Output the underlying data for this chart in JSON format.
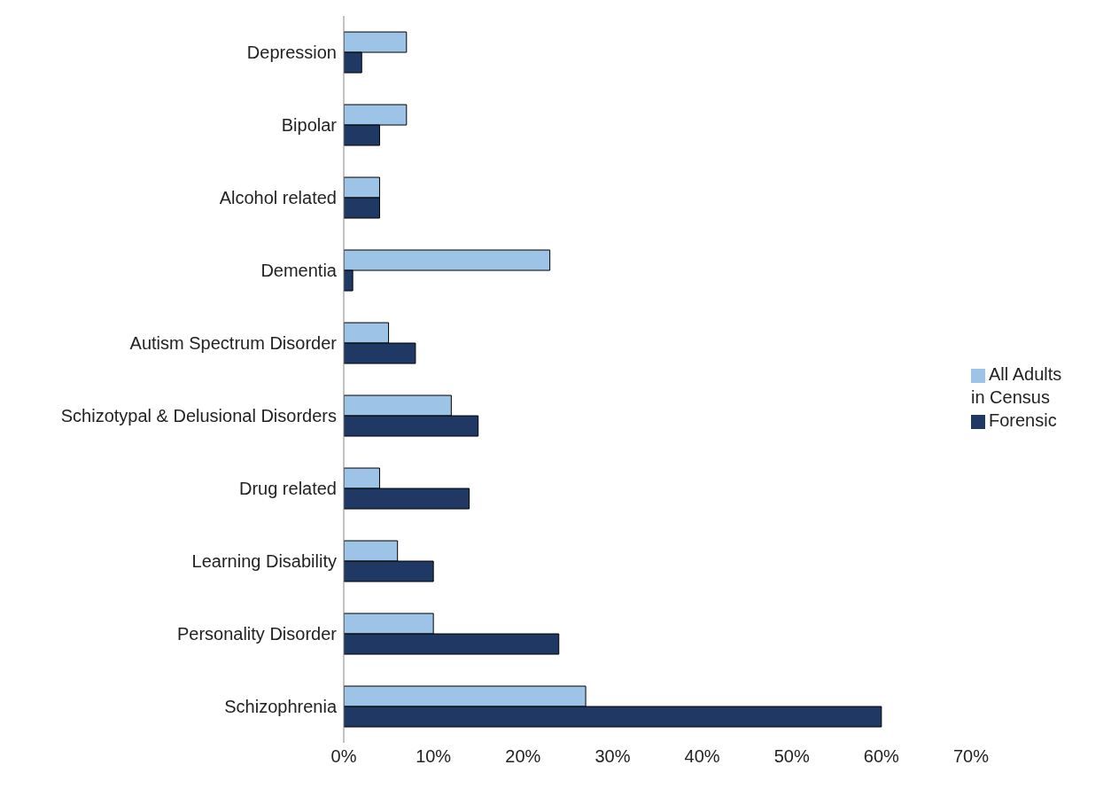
{
  "chart_data": {
    "type": "bar",
    "orientation": "horizontal",
    "categories": [
      "Depression",
      "Bipolar",
      "Alcohol related",
      "Dementia",
      "Autism Spectrum Disorder",
      "Schizotypal & Delusional Disorders",
      "Drug related",
      "Learning Disability",
      "Personality Disorder",
      "Schizophrenia"
    ],
    "series": [
      {
        "name": "All Adults in Census",
        "color": "#9dc3e6",
        "values": [
          7,
          7,
          4,
          23,
          5,
          12,
          4,
          6,
          10,
          27
        ]
      },
      {
        "name": "Forensic",
        "color": "#1f3864",
        "values": [
          2,
          4,
          4,
          1,
          8,
          15,
          14,
          10,
          24,
          60
        ]
      }
    ],
    "xlim": [
      0,
      70
    ],
    "xticks": [
      {
        "value": 0,
        "label": "0%"
      },
      {
        "value": 10,
        "label": "10%"
      },
      {
        "value": 20,
        "label": "20%"
      },
      {
        "value": 30,
        "label": "30%"
      },
      {
        "value": 40,
        "label": "40%"
      },
      {
        "value": 50,
        "label": "50%"
      },
      {
        "value": 60,
        "label": "60%"
      },
      {
        "value": 70,
        "label": "70%"
      }
    ],
    "grid": false,
    "legend": "right"
  }
}
